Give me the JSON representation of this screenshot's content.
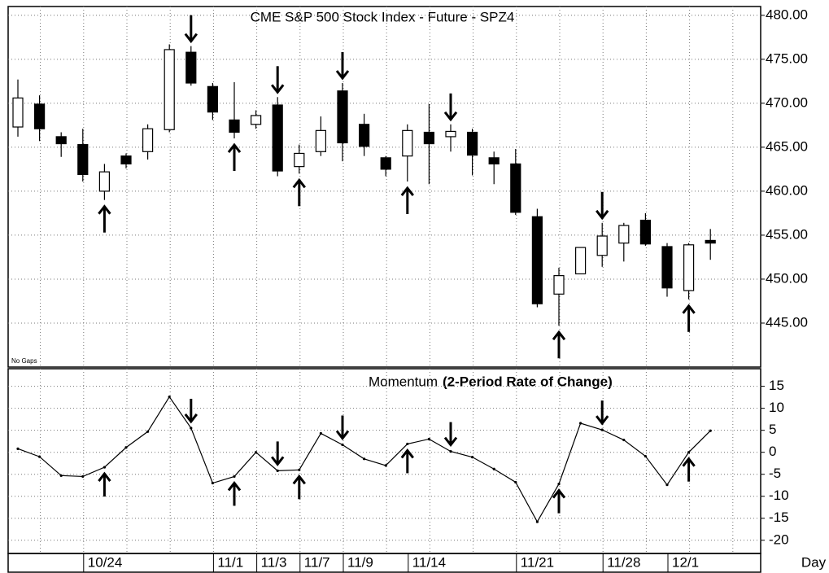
{
  "chart_data": [
    {
      "type": "candlestick",
      "title": "CME S&P 500 Stock Index - Future - SPZ4",
      "note": "No Gaps",
      "x_axis_label": "Day",
      "categories": [
        null,
        null,
        null,
        "10/24",
        null,
        null,
        null,
        null,
        null,
        "11/1",
        null,
        "11/3",
        null,
        "11/7",
        null,
        "11/9",
        null,
        null,
        "11/14",
        null,
        null,
        null,
        null,
        "11/21",
        null,
        null,
        null,
        "11/28",
        null,
        null,
        "12/1",
        null,
        null
      ],
      "open": [
        467.3,
        469.9,
        466.2,
        465.3,
        460.0,
        464.0,
        464.5,
        467.0,
        475.8,
        471.9,
        468.1,
        467.6,
        469.8,
        462.8,
        464.5,
        471.4,
        467.6,
        463.8,
        464.0,
        466.7,
        466.2,
        466.7,
        463.8,
        463.1,
        457.1,
        448.3,
        450.6,
        452.7,
        454.1,
        456.7,
        453.7,
        448.7,
        454.4
      ],
      "high": [
        472.7,
        470.9,
        466.7,
        467.1,
        463.1,
        464.3,
        467.6,
        476.7,
        476.5,
        472.3,
        472.4,
        469.2,
        470.7,
        465.3,
        468.5,
        472.3,
        468.8,
        464.0,
        467.6,
        469.9,
        467.6,
        467.1,
        464.5,
        464.8,
        458.0,
        451.3,
        453.6,
        456.4,
        456.4,
        457.5,
        454.1,
        454.1,
        455.7
      ],
      "low": [
        466.2,
        465.7,
        463.9,
        461.1,
        459.0,
        462.6,
        463.6,
        466.7,
        472.0,
        468.1,
        466.0,
        467.1,
        461.7,
        462.0,
        464.0,
        463.4,
        464.0,
        461.7,
        461.1,
        460.8,
        464.5,
        461.8,
        460.8,
        457.3,
        446.8,
        444.7,
        450.6,
        451.4,
        452.0,
        453.8,
        448.0,
        447.7,
        452.2
      ],
      "close": [
        470.6,
        467.1,
        465.4,
        461.9,
        462.2,
        463.1,
        467.1,
        476.1,
        472.3,
        469.0,
        466.7,
        468.6,
        462.3,
        464.3,
        466.9,
        465.5,
        465.1,
        462.5,
        466.9,
        465.4,
        466.8,
        464.1,
        463.1,
        457.6,
        447.2,
        450.4,
        453.6,
        454.9,
        456.1,
        454.0,
        449.0,
        453.9,
        454.1
      ],
      "buy_signals": [
        4,
        10,
        13,
        18,
        25,
        31
      ],
      "sell_signals": [
        8,
        12,
        15,
        20,
        27
      ],
      "ylim": [
        440,
        481
      ],
      "yticks": [
        {
          "value": 445,
          "label": "445.00"
        },
        {
          "value": 450,
          "label": "450.00"
        },
        {
          "value": 455,
          "label": "455.00"
        },
        {
          "value": 460,
          "label": "460.00"
        },
        {
          "value": 465,
          "label": "465.00"
        },
        {
          "value": 470,
          "label": "470.00"
        },
        {
          "value": 475,
          "label": "475.00"
        },
        {
          "value": 480,
          "label": "480.00"
        }
      ],
      "grid": true,
      "color": "#000000"
    },
    {
      "type": "line",
      "title": "Momentum",
      "subtitle": "(2-Period Rate of Change)",
      "values": [
        0.8,
        -1,
        -5.3,
        -5.5,
        -3.4,
        1.1,
        4.7,
        12.6,
        5.5,
        -7,
        -5.5,
        0,
        -4.2,
        -4,
        4.3,
        1.7,
        -1.5,
        -3,
        1.9,
        3,
        0.2,
        -1.1,
        -3.8,
        -6.8,
        -15.8,
        -7.2,
        6.6,
        5.1,
        2.8,
        -0.9,
        -7.4,
        0,
        4.9
      ],
      "buy_signals": [
        4,
        10,
        13,
        18,
        25,
        31
      ],
      "sell_signals": [
        8,
        12,
        15,
        20,
        27
      ],
      "ylim": [
        -23,
        19
      ],
      "yticks": [
        15,
        10,
        5,
        0,
        -5,
        -10,
        -15,
        -20
      ],
      "grid": true,
      "color": "#000000"
    }
  ]
}
